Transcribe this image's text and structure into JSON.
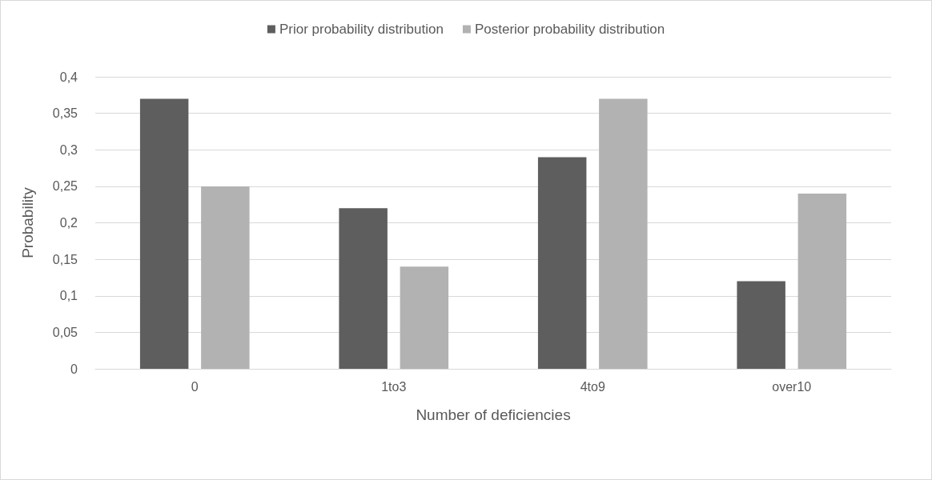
{
  "chart_data": {
    "type": "bar",
    "xlabel": "Number of deficiencies",
    "ylabel": "Probability",
    "categories": [
      "0",
      "1to3",
      "4to9",
      "over10"
    ],
    "series": [
      {
        "name": "Prior probability distribution",
        "color": "#5e5e5e",
        "values": [
          0.37,
          0.22,
          0.29,
          0.12
        ]
      },
      {
        "name": "Posterior probability distribution",
        "color": "#b2b2b2",
        "values": [
          0.25,
          0.14,
          0.37,
          0.24
        ]
      }
    ],
    "ylim": [
      0,
      0.4
    ],
    "yticks": [
      0,
      {
        "value": 0.05,
        "label": "0,05"
      },
      {
        "value": 0.1,
        "label": "0,1"
      },
      {
        "value": 0.15,
        "label": "0,15"
      },
      {
        "value": 0.2,
        "label": "0,2"
      },
      {
        "value": 0.25,
        "label": "0,25"
      },
      {
        "value": 0.3,
        "label": "0,3"
      },
      {
        "value": 0.35,
        "label": "0,35"
      },
      {
        "value": 0.4,
        "label": "0,4"
      }
    ],
    "grid": "y",
    "legend": "top"
  }
}
